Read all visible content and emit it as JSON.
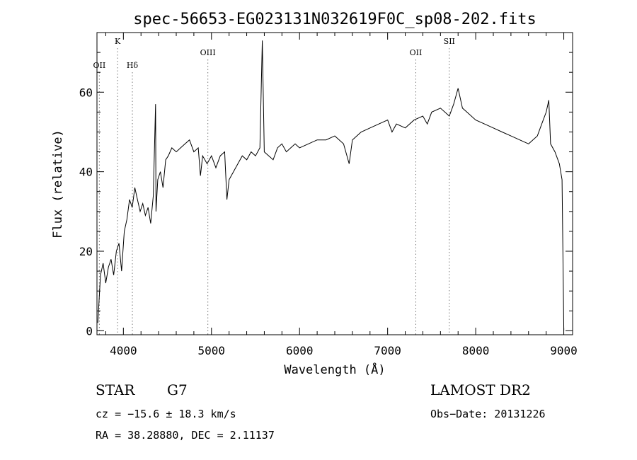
{
  "chart_data": {
    "type": "line",
    "title": "spec-56653-EG023131N032619F0C_sp08-202.fits",
    "xlabel": "Wavelength (Å)",
    "ylabel": "Flux (relative)",
    "xlim": [
      3700,
      9100
    ],
    "ylim": [
      -1,
      75
    ],
    "xticks": [
      4000,
      5000,
      6000,
      7000,
      8000,
      9000
    ],
    "yticks": [
      0,
      20,
      40,
      60
    ],
    "grid": false,
    "series": [
      {
        "x": [
          3710,
          3740,
          3770,
          3800,
          3830,
          3860,
          3890,
          3920,
          3950,
          3980,
          4010,
          4040,
          4070,
          4100,
          4130,
          4160,
          4190,
          4220,
          4250,
          4280,
          4310,
          4340,
          4365,
          4370,
          4390,
          4420,
          4450,
          4480,
          4510,
          4550,
          4600,
          4650,
          4700,
          4750,
          4800,
          4850,
          4875,
          4900,
          4950,
          5000,
          5050,
          5100,
          5150,
          5175,
          5200,
          5250,
          5300,
          5350,
          5400,
          5450,
          5500,
          5550,
          5577,
          5600,
          5650,
          5700,
          5750,
          5800,
          5850,
          5900,
          5950,
          6000,
          6100,
          6200,
          6300,
          6400,
          6500,
          6563,
          6600,
          6700,
          6800,
          6900,
          7000,
          7050,
          7100,
          7200,
          7300,
          7400,
          7450,
          7500,
          7600,
          7700,
          7750,
          7800,
          7850,
          7900,
          8000,
          8100,
          8200,
          8300,
          8400,
          8500,
          8600,
          8700,
          8750,
          8800,
          8830,
          8850,
          8900,
          8950,
          8980,
          9000
        ],
        "values": [
          2,
          14,
          17,
          12,
          16,
          18,
          14,
          20,
          22,
          15,
          25,
          28,
          33,
          31,
          36,
          33,
          30,
          32,
          29,
          31,
          27,
          34,
          57,
          30,
          38,
          40,
          36,
          43,
          44,
          46,
          45,
          46,
          47,
          48,
          45,
          46,
          39,
          44,
          42,
          44,
          41,
          44,
          45,
          33,
          38,
          40,
          42,
          44,
          43,
          45,
          44,
          46,
          73,
          45,
          44,
          43,
          46,
          47,
          45,
          46,
          47,
          46,
          47,
          48,
          48,
          49,
          47,
          42,
          48,
          50,
          51,
          52,
          53,
          50,
          52,
          51,
          53,
          54,
          52,
          55,
          56,
          54,
          57,
          61,
          56,
          55,
          53,
          52,
          51,
          50,
          49,
          48,
          47,
          49,
          52,
          55,
          58,
          47,
          45,
          42,
          38,
          0
        ]
      }
    ],
    "annotations": [
      {
        "label": "OII",
        "x": 3727
      },
      {
        "label": "K",
        "x": 3934
      },
      {
        "label": "Hδ",
        "x": 4102
      },
      {
        "label": "OIII",
        "x": 4959
      },
      {
        "label": "OII",
        "x": 7320
      },
      {
        "label": "SII",
        "x": 7700
      }
    ]
  },
  "info": {
    "class_label": "STAR",
    "subclass_label": "G7",
    "survey": "LAMOST DR2",
    "redshift_text": "cz = −15.6 ± 18.3 km/s",
    "obs_date_text": "Obs−Date: 20131226",
    "coords_text": "RA =  38.28880, DEC =   2.11137"
  }
}
